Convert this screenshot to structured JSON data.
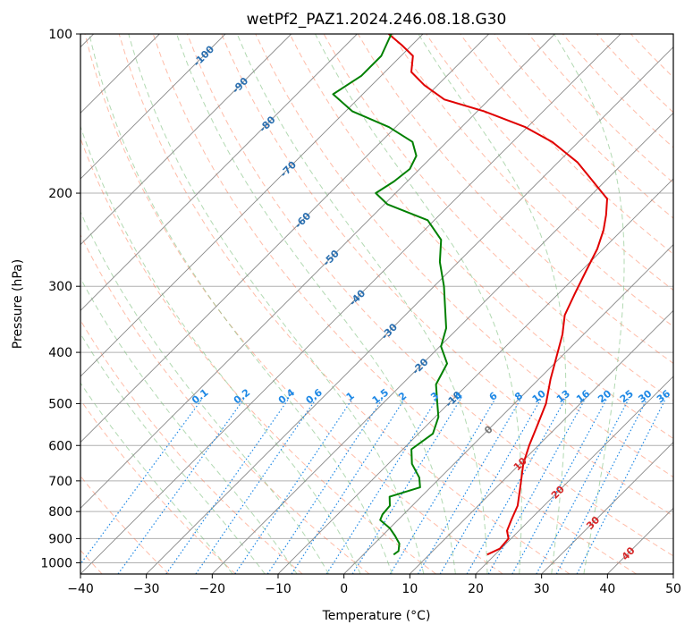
{
  "chart_data": {
    "type": "line",
    "subtype": "skew-T log-P diagram",
    "title": "wetPf2_PAZ1.2024.246.08.18.G30",
    "xlabel": "Temperature (°C)",
    "ylabel": "Pressure (hPa)",
    "xlim": [
      -40,
      50
    ],
    "ylim": [
      1050,
      100
    ],
    "y_scale": "log",
    "grid": true,
    "x_ticks": [
      -40,
      -30,
      -20,
      -10,
      0,
      10,
      20,
      30,
      40,
      50
    ],
    "x_tick_labels": [
      "−40",
      "−30",
      "−20",
      "−10",
      "0",
      "10",
      "20",
      "30",
      "40",
      "50"
    ],
    "y_ticks": [
      100,
      200,
      300,
      400,
      500,
      600,
      700,
      800,
      900,
      1000
    ],
    "y_tick_labels": [
      "100",
      "200",
      "300",
      "400",
      "500",
      "600",
      "700",
      "800",
      "900",
      "1000"
    ],
    "series": [
      {
        "color": "#e00000",
        "label_role": "temperature",
        "points": [
          [
            965,
            18.8
          ],
          [
            940,
            19.8
          ],
          [
            900,
            19.6
          ],
          [
            870,
            18.2
          ],
          [
            830,
            17.2
          ],
          [
            780,
            16.0
          ],
          [
            720,
            13.6
          ],
          [
            650,
            10.5
          ],
          [
            600,
            8.6
          ],
          [
            550,
            6.8
          ],
          [
            500,
            4.8
          ],
          [
            450,
            1.8
          ],
          [
            400,
            -1.2
          ],
          [
            370,
            -3.2
          ],
          [
            340,
            -5.8
          ],
          [
            310,
            -7.5
          ],
          [
            280,
            -9.3
          ],
          [
            255,
            -10.9
          ],
          [
            235,
            -12.8
          ],
          [
            220,
            -14.7
          ],
          [
            205,
            -17.0
          ],
          [
            190,
            -21.8
          ],
          [
            175,
            -27.0
          ],
          [
            160,
            -34.0
          ],
          [
            150,
            -40.3
          ],
          [
            140,
            -49.0
          ],
          [
            133,
            -56.8
          ],
          [
            125,
            -62.0
          ],
          [
            118,
            -66.0
          ],
          [
            110,
            -68.2
          ],
          [
            105,
            -71.5
          ],
          [
            100,
            -75.2
          ]
        ]
      },
      {
        "color": "#008000",
        "label_role": "dewpoint",
        "points": [
          [
            965,
            4.6
          ],
          [
            950,
            4.8
          ],
          [
            920,
            3.8
          ],
          [
            890,
            2.0
          ],
          [
            860,
            0.0
          ],
          [
            830,
            -2.7
          ],
          [
            810,
            -3.2
          ],
          [
            780,
            -3.4
          ],
          [
            750,
            -4.8
          ],
          [
            720,
            -1.6
          ],
          [
            690,
            -3.2
          ],
          [
            650,
            -6.4
          ],
          [
            610,
            -8.7
          ],
          [
            570,
            -7.8
          ],
          [
            530,
            -9.5
          ],
          [
            500,
            -11.7
          ],
          [
            460,
            -14.8
          ],
          [
            420,
            -16.3
          ],
          [
            390,
            -19.8
          ],
          [
            360,
            -21.8
          ],
          [
            330,
            -25.0
          ],
          [
            300,
            -28.5
          ],
          [
            270,
            -32.8
          ],
          [
            245,
            -36.0
          ],
          [
            225,
            -41.0
          ],
          [
            210,
            -49.5
          ],
          [
            200,
            -53.0
          ],
          [
            190,
            -52.0
          ],
          [
            180,
            -51.5
          ],
          [
            170,
            -52.5
          ],
          [
            160,
            -55.2
          ],
          [
            150,
            -61.0
          ],
          [
            140,
            -69.0
          ],
          [
            130,
            -74.5
          ],
          [
            120,
            -73.0
          ],
          [
            110,
            -73.0
          ],
          [
            100,
            -74.8
          ]
        ]
      }
    ],
    "isotherm_labels": [
      "-100",
      "-90",
      "-80",
      "-70",
      "-60",
      "-50",
      "-40",
      "-30",
      "-20",
      "-10",
      "0",
      "10",
      "20",
      "30",
      "40"
    ],
    "mixing_ratio_labels": [
      "0.1",
      "0.2",
      "0.4",
      "0.6",
      "1",
      "1.5",
      "2",
      "3",
      "4",
      "6",
      "8",
      "10",
      "13",
      "16",
      "20",
      "25",
      "30",
      "36"
    ],
    "mixing_ratio_values": [
      0.1,
      0.2,
      0.4,
      0.6,
      1,
      1.5,
      2,
      3,
      4,
      6,
      8,
      10,
      13,
      16,
      20,
      25,
      30,
      36
    ],
    "dry_adiabats_C": [
      -60,
      -50,
      -40,
      -30,
      -20,
      -10,
      0,
      10,
      20,
      30,
      40,
      50,
      60,
      70,
      80,
      90,
      100,
      110,
      120,
      130,
      140,
      150,
      160,
      170,
      180
    ],
    "moist_adiabats_C": [
      -20,
      -15,
      -10,
      -5,
      0,
      5,
      10,
      15,
      20,
      25,
      30,
      35
    ],
    "colors": {
      "temperature": "#e00000",
      "dewpoint": "#008000",
      "isotherm": "#888888",
      "isobar": "#b0b0b0",
      "dry_adiabat": "#ff6a3d",
      "moist_adiabat": "#7ec07e",
      "mixing_ratio": "#1e88e5",
      "isotherm_cold_label": "#2a6fb0",
      "isotherm_warm_label": "#d62728",
      "isotherm_zero_label": "#777777",
      "tan_curve": "#d9bf9c"
    }
  }
}
